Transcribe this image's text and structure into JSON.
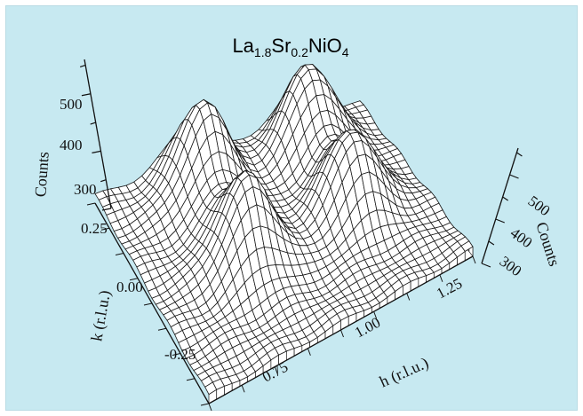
{
  "chart_data": {
    "type": "surface3d",
    "title": "La1.8Sr0.2NiO4",
    "title_parts": {
      "base1": "La",
      "sub1": "1.8",
      "base2": "Sr",
      "sub2": "0.2",
      "base3": "NiO",
      "sub3": "4"
    },
    "x_label": "h (r.l.u.)",
    "y_label": "k (r.l.u.)",
    "z_label": "Counts",
    "x_ticks": [
      "0.75",
      "1.00",
      "1.25"
    ],
    "y_ticks": [
      "-0.25",
      "0.00",
      "0.25"
    ],
    "z_ticks_left": [
      "300",
      "400",
      "500"
    ],
    "z_ticks_right": [
      "300",
      "400",
      "500"
    ],
    "x_range": [
      0.62,
      1.32
    ],
    "y_range": [
      -0.35,
      0.35
    ],
    "z_range": [
      300,
      560
    ],
    "background": "#c7e9f1",
    "mesh_color": "#1a1a1a",
    "surface_color": "#ffffff",
    "peaks": [
      {
        "h": 0.86,
        "k": 0.24,
        "counts": 560
      },
      {
        "h": 1.14,
        "k": 0.24,
        "counts": 555
      },
      {
        "h": 0.86,
        "k": -0.02,
        "counts": 545
      },
      {
        "h": 1.14,
        "k": -0.02,
        "counts": 540
      }
    ],
    "baseline_counts": 320
  }
}
